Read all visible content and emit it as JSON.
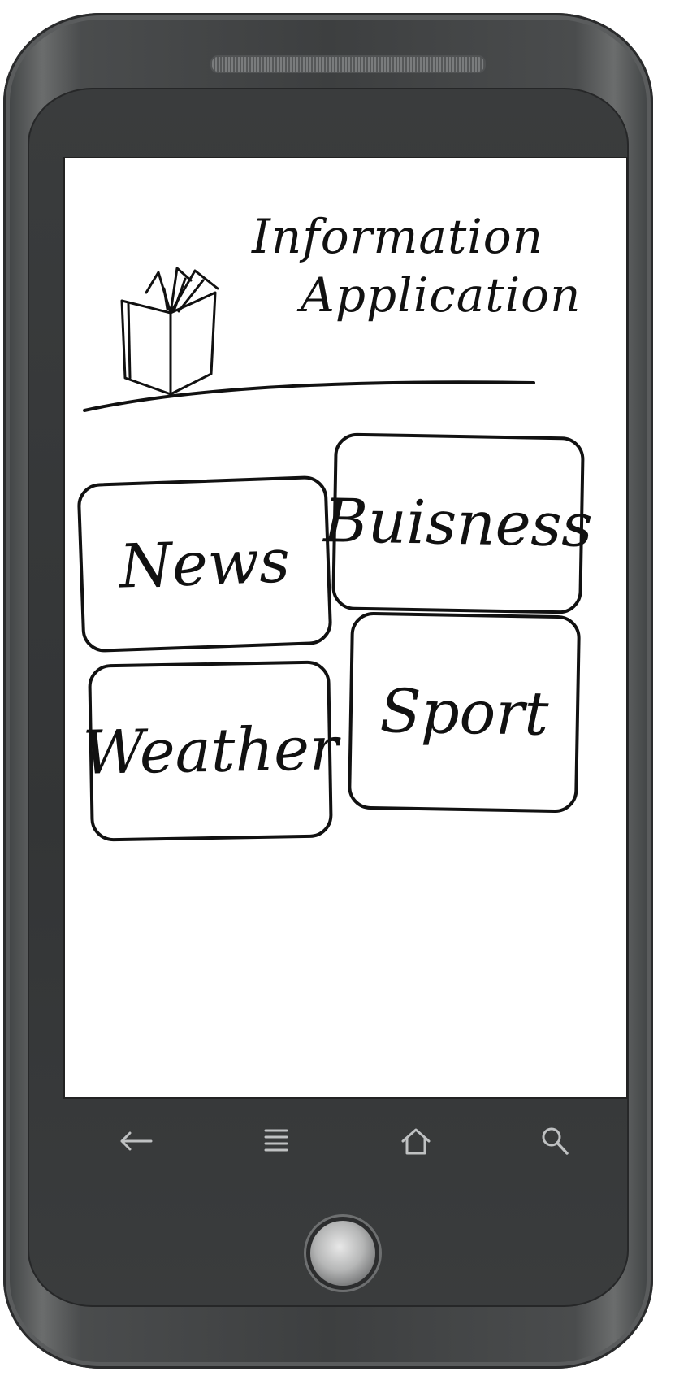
{
  "app": {
    "title_line1": "Information",
    "title_line2": "Application"
  },
  "tiles": [
    {
      "label": "News"
    },
    {
      "label": "Buisness"
    },
    {
      "label": "Weather"
    },
    {
      "label": "Sport"
    }
  ],
  "navbar": {
    "back_icon": "back-arrow-icon",
    "menu_icon": "menu-icon",
    "home_icon": "home-icon",
    "search_icon": "search-icon"
  },
  "colors": {
    "screen_bg": "#ffffff",
    "ink": "#111111",
    "device_body": "#3d3f40"
  }
}
